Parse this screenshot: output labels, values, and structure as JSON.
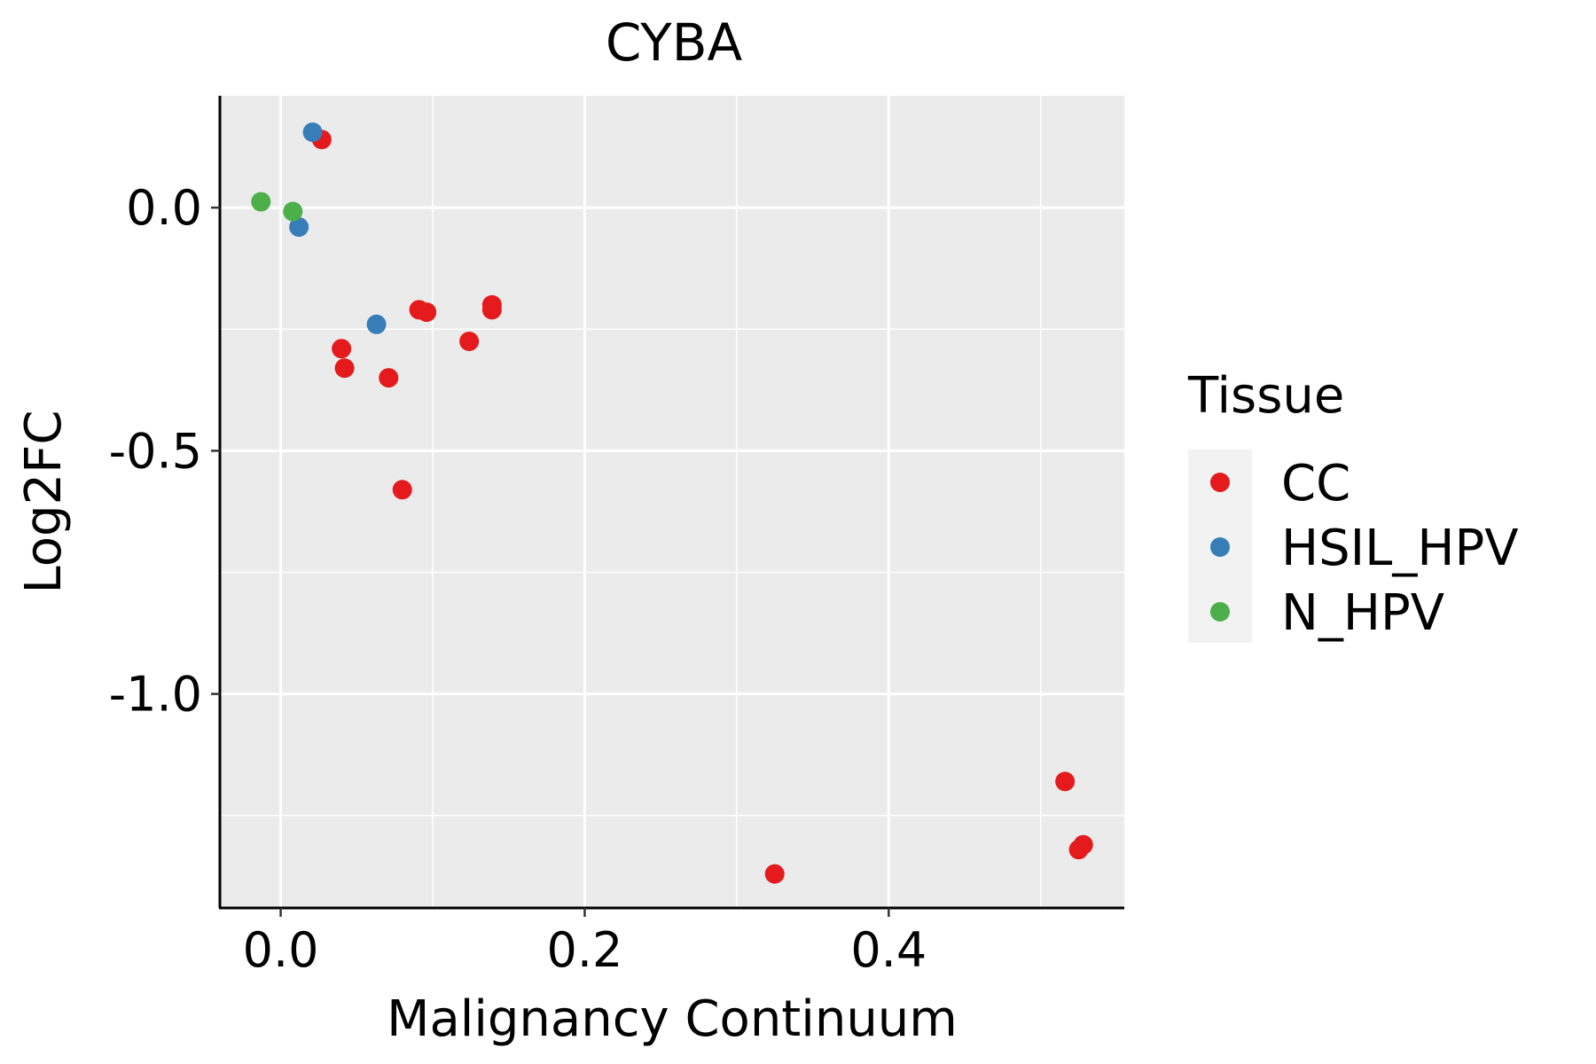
{
  "chart_data": {
    "type": "scatter",
    "title": "CYBA",
    "xlabel": "Malignancy Continuum",
    "ylabel": "Log2FC",
    "xlim": [
      -0.04,
      0.555
    ],
    "ylim": [
      -1.44,
      0.23
    ],
    "x_ticks": [
      0.0,
      0.2,
      0.4
    ],
    "x_tick_labels": [
      "0.0",
      "0.2",
      "0.4"
    ],
    "x_minor_gridlines": [
      0.1,
      0.3,
      0.5
    ],
    "y_ticks": [
      0.0,
      -0.5,
      -1.0
    ],
    "y_tick_labels": [
      "0.0",
      "-0.5",
      "-1.0"
    ],
    "y_minor_gridlines": [
      -0.25,
      -0.75,
      -1.25
    ],
    "grid": true,
    "legend": {
      "title": "Tissue",
      "position": "right",
      "entries": [
        {
          "label": "CC",
          "color": "#E41A1C"
        },
        {
          "label": "HSIL_HPV",
          "color": "#377EB8"
        },
        {
          "label": "N_HPV",
          "color": "#4DAF4A"
        }
      ]
    },
    "series": [
      {
        "name": "CC",
        "color": "#E41A1C",
        "points": [
          {
            "x": 0.027,
            "y": 0.14
          },
          {
            "x": 0.04,
            "y": -0.29
          },
          {
            "x": 0.042,
            "y": -0.33
          },
          {
            "x": 0.071,
            "y": -0.35
          },
          {
            "x": 0.08,
            "y": -0.58
          },
          {
            "x": 0.091,
            "y": -0.21
          },
          {
            "x": 0.096,
            "y": -0.215
          },
          {
            "x": 0.124,
            "y": -0.275
          },
          {
            "x": 0.139,
            "y": -0.2
          },
          {
            "x": 0.139,
            "y": -0.21
          },
          {
            "x": 0.325,
            "y": -1.37
          },
          {
            "x": 0.516,
            "y": -1.18
          },
          {
            "x": 0.525,
            "y": -1.32
          },
          {
            "x": 0.528,
            "y": -1.31
          }
        ]
      },
      {
        "name": "HSIL_HPV",
        "color": "#377EB8",
        "points": [
          {
            "x": 0.021,
            "y": 0.155
          },
          {
            "x": 0.012,
            "y": -0.04
          },
          {
            "x": 0.063,
            "y": -0.24
          }
        ]
      },
      {
        "name": "N_HPV",
        "color": "#4DAF4A",
        "points": [
          {
            "x": -0.013,
            "y": 0.012
          },
          {
            "x": 0.008,
            "y": -0.008
          }
        ]
      }
    ]
  },
  "colors": {
    "panel_background": "#EBEBEB",
    "grid": "#FFFFFF",
    "legend_key_background": "#F2F2F2"
  }
}
